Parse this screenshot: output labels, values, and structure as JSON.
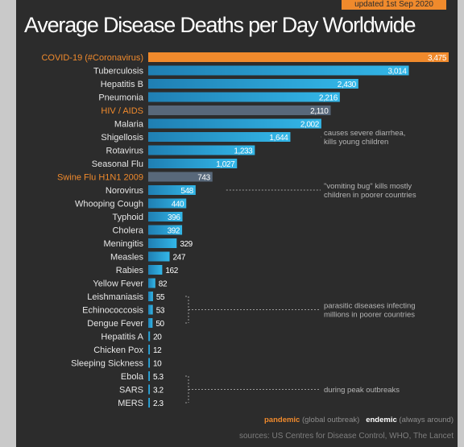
{
  "badge": "updated 1st Sep 2020",
  "title": "Average Disease Deaths per Day Worldwide",
  "colors": {
    "background": "#2c2c2c",
    "pandemic": "#f08a2c",
    "bar_light": "#33b7e8",
    "bar_dark": "#1f7fb3",
    "bar_gray": "#58687a",
    "label": "#e6e6e6",
    "annotation": "#b5b5b5"
  },
  "chart_data": {
    "type": "bar",
    "orientation": "horizontal",
    "categories": [
      "COVID-19 (#Coronavirus)",
      "Tuberculosis",
      "Hepatitis B",
      "Pneumonia",
      "HIV / AIDS",
      "Malaria",
      "Shigellosis",
      "Rotavirus",
      "Seasonal Flu",
      "Swine Flu H1N1 2009",
      "Norovirus",
      "Whooping Cough",
      "Typhoid",
      "Cholera",
      "Meningitis",
      "Measles",
      "Rabies",
      "Yellow Fever",
      "Leishmaniasis",
      "Echinococcosis",
      "Dengue Fever",
      "Hepatitis A",
      "Chicken Pox",
      "Sleeping Sickness",
      "Ebola",
      "SARS",
      "MERS"
    ],
    "values": [
      3475,
      3014,
      2430,
      2216,
      2110,
      2002,
      1644,
      1233,
      1027,
      743,
      548,
      440,
      396,
      392,
      329,
      247,
      162,
      82,
      55,
      53,
      50,
      20,
      12,
      10,
      5.3,
      3.2,
      2.3
    ],
    "value_labels": [
      "3,475",
      "3,014",
      "2,430",
      "2,216",
      "2,110",
      "2,002",
      "1,644",
      "1,233",
      "1,027",
      "743",
      "548",
      "440",
      "396",
      "392",
      "329",
      "247",
      "162",
      "82",
      "55",
      "53",
      "50",
      "20",
      "12",
      "10",
      "5.3",
      "3.2",
      "2.3"
    ],
    "types": [
      "pandemic",
      "endemic",
      "endemic",
      "endemic",
      "pandemic",
      "endemic",
      "endemic",
      "endemic",
      "endemic",
      "pandemic",
      "endemic",
      "endemic",
      "endemic",
      "endemic",
      "endemic",
      "endemic",
      "endemic",
      "endemic",
      "endemic",
      "endemic",
      "endemic",
      "endemic",
      "endemic",
      "endemic",
      "endemic",
      "endemic",
      "endemic"
    ],
    "xlim": [
      0,
      3475
    ],
    "grid": false,
    "annotations": [
      {
        "text": [
          "causes severe diarrhea,",
          "kills young children"
        ],
        "from": 6,
        "to": 6
      },
      {
        "text": [
          "\"vomiting bug\" kills mostly",
          "children in poorer countries"
        ],
        "from": 10,
        "to": 10
      },
      {
        "text": [
          "parasitic diseases infecting",
          "millions in poorer countries"
        ],
        "from": 18,
        "to": 20
      },
      {
        "text": [
          "during peak outbreaks"
        ],
        "from": 24,
        "to": 26
      }
    ]
  },
  "legend": {
    "pandemic_label": "pandemic",
    "pandemic_desc": "(global outbreak)",
    "endemic_label": "endemic",
    "endemic_desc": "(always around)"
  },
  "sources": "sources: US Centres for Disease Control, WHO, The Lancet"
}
